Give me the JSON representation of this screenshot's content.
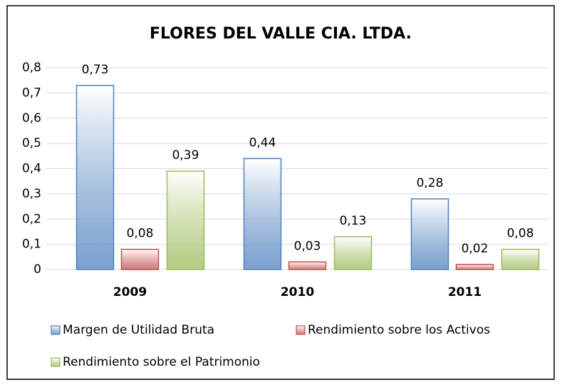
{
  "chart_data": {
    "type": "bar",
    "title": "FLORES DEL VALLE CIA. LTDA.",
    "categories": [
      "2009",
      "2010",
      "2011"
    ],
    "series": [
      {
        "name": "Margen de Utilidad Bruta",
        "color": "#4f81bd",
        "values": [
          0.73,
          0.44,
          0.28
        ],
        "value_labels": [
          "0,73",
          "0,44",
          "0,28"
        ]
      },
      {
        "name": "Rendimiento sobre los Activos",
        "color": "#c0504d",
        "values": [
          0.08,
          0.03,
          0.02
        ],
        "value_labels": [
          "0,08",
          "0,03",
          "0,02"
        ]
      },
      {
        "name": "Rendimiento sobre el Patrimonio",
        "color": "#9bbb59",
        "values": [
          0.39,
          0.13,
          0.08
        ],
        "value_labels": [
          "0,39",
          "0,13",
          "0,08"
        ]
      }
    ],
    "ylim": [
      0,
      0.8
    ],
    "yticks": [
      0,
      {
        "value": 0.1,
        "label": "0,1"
      },
      {
        "value": 0.2,
        "label": "0,2"
      },
      {
        "value": 0.3,
        "label": "0,3"
      },
      {
        "value": 0.4,
        "label": "0,4"
      },
      {
        "value": 0.5,
        "label": "0,5"
      },
      {
        "value": 0.6,
        "label": "0,6"
      },
      {
        "value": 0.7,
        "label": "0,7"
      },
      {
        "value": 0.8,
        "label": "0,8"
      }
    ],
    "grid": true
  }
}
